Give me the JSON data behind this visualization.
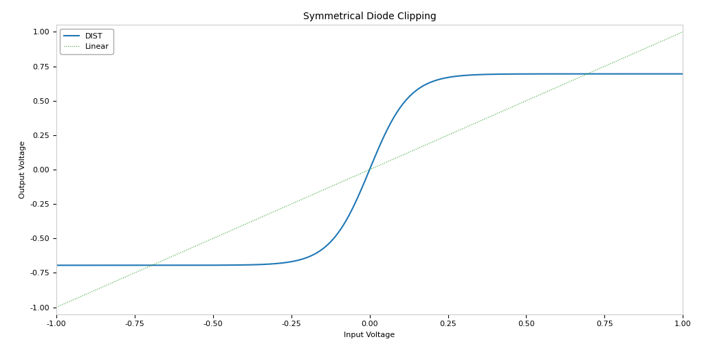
{
  "title": "Symmetrical Diode Clipping",
  "xlabel": "Input Voltage",
  "ylabel": "Output Voltage",
  "xlim": [
    -1.0,
    1.0
  ],
  "ylim": [
    -1.05,
    1.05
  ],
  "dist_color": "#1f77b4",
  "linear_color": "#2ca02c",
  "dist_label": "DIST",
  "linear_label": "Linear",
  "clip_level": 0.695,
  "gain": 5.5,
  "n_points": 2000,
  "background_color": "#ffffff",
  "title_fontsize": 10,
  "axis_label_fontsize": 8,
  "tick_fontsize": 8,
  "legend_fontsize": 8,
  "linewidth_dist": 1.5,
  "linewidth_linear": 0.8,
  "figsize": [
    10.24,
    5.2
  ],
  "dpi": 100,
  "xticks": [
    -1.0,
    -0.75,
    -0.5,
    -0.25,
    0.0,
    0.25,
    0.5,
    0.75,
    1.0
  ],
  "yticks": [
    -1.0,
    -0.75,
    -0.5,
    -0.25,
    0.0,
    0.25,
    0.5,
    0.75,
    1.0
  ]
}
